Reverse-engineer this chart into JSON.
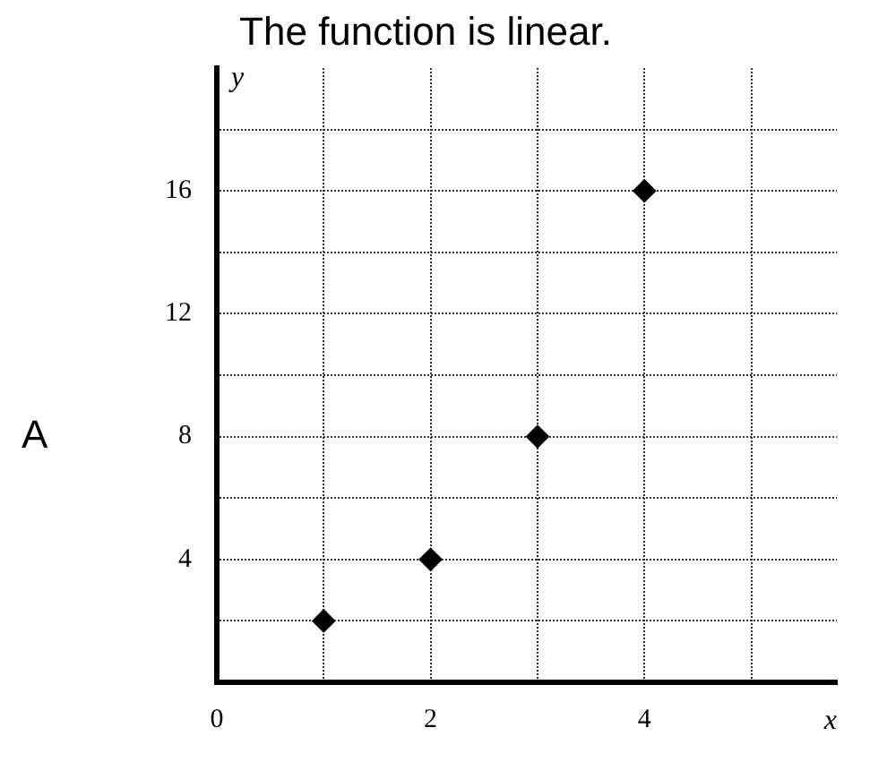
{
  "chart_data": {
    "type": "scatter",
    "title": "The function is linear.",
    "xlabel": "x",
    "ylabel": "y",
    "annotations": [
      "A"
    ],
    "x": [
      1,
      2,
      3,
      4
    ],
    "series": [
      {
        "color": "#000000",
        "values": [
          2,
          4,
          8,
          16
        ]
      }
    ],
    "xlim": [
      0,
      5.8
    ],
    "ylim": [
      0,
      20
    ],
    "xticks": [
      0,
      {
        "value": 1,
        "label": null
      },
      2,
      {
        "value": 3,
        "label": null
      },
      4,
      {
        "value": 5,
        "label": null
      }
    ],
    "yticks": [
      {
        "value": 2,
        "label": null
      },
      4,
      {
        "value": 6,
        "label": null
      },
      8,
      {
        "value": 10,
        "label": null
      },
      12,
      {
        "value": 14,
        "label": null
      },
      16,
      {
        "value": 18,
        "label": null
      }
    ],
    "grid": true,
    "marker": "diamond",
    "legend": false
  }
}
